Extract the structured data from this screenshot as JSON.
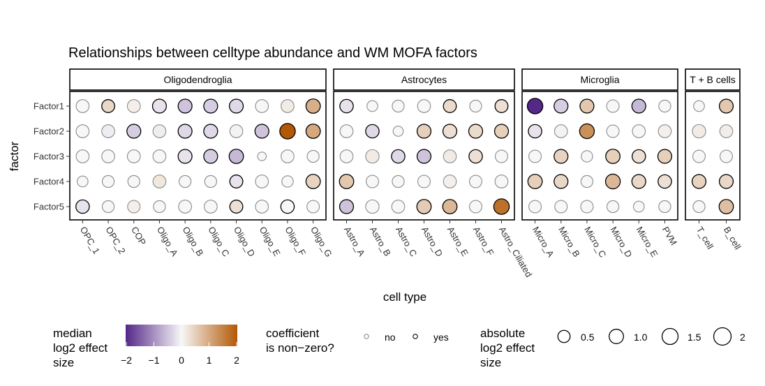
{
  "chart_data": {
    "type": "scatter",
    "title": "Relationships between celltype abundance and WM MOFA factors",
    "xlabel": "cell type",
    "ylabel": "factor",
    "factors": [
      "Factor1",
      "Factor2",
      "Factor3",
      "Factor4",
      "Factor5"
    ],
    "panels": [
      {
        "name": "Oligodendroglia",
        "celltypes": [
          "OPC_1",
          "OPC_2",
          "COP",
          "Oligo_A",
          "Oligo_B",
          "Oligo_C",
          "Oligo_D",
          "Oligo_E",
          "Oligo_F",
          "Oligo_G"
        ]
      },
      {
        "name": "Astrocytes",
        "celltypes": [
          "Astro_A",
          "Astro_B",
          "Astro_C",
          "Astro_D",
          "Astro_E",
          "Astro_F",
          "Astro_Ciliated"
        ]
      },
      {
        "name": "Microglia",
        "celltypes": [
          "Micro_A",
          "Micro_B",
          "Micro_C",
          "Micro_D",
          "Micro_E",
          "PVM"
        ]
      },
      {
        "name": "T + B cells",
        "celltypes": [
          "T_cell",
          "B_cell"
        ]
      }
    ],
    "effect": {
      "Oligodendroglia": [
        [
          0.0,
          0.4,
          0.1,
          -0.2,
          -0.5,
          -0.4,
          -0.3,
          0.0,
          0.15,
          0.9
        ],
        [
          0.0,
          -0.1,
          -0.4,
          -0.1,
          -0.3,
          -0.3,
          -0.05,
          -0.5,
          2.0,
          1.0
        ],
        [
          0.0,
          0.0,
          0.0,
          0.0,
          -0.2,
          -0.4,
          -0.6,
          0.0,
          0.0,
          0.0
        ],
        [
          0.0,
          0.0,
          0.0,
          0.2,
          0.0,
          0.0,
          -0.2,
          0.0,
          0.0,
          0.45
        ],
        [
          -0.2,
          0.0,
          0.1,
          0.0,
          0.0,
          0.0,
          0.3,
          0.0,
          0.0,
          0.0
        ]
      ],
      "Astrocytes": [
        [
          -0.2,
          0.0,
          0.0,
          0.0,
          0.35,
          0.0,
          0.3
        ],
        [
          0.0,
          -0.3,
          0.0,
          0.5,
          0.3,
          0.35,
          0.5
        ],
        [
          0.0,
          0.15,
          -0.3,
          -0.5,
          0.15,
          0.3,
          0.0
        ],
        [
          0.6,
          0.0,
          0.0,
          0.0,
          0.1,
          0.0,
          0.0
        ],
        [
          -0.5,
          0.0,
          0.0,
          0.55,
          0.8,
          0.0,
          1.7
        ]
      ],
      "Microglia": [
        [
          -2.0,
          -0.4,
          0.6,
          0.0,
          -0.6,
          0.0
        ],
        [
          -0.2,
          -0.05,
          1.3,
          0.0,
          0.0,
          0.1
        ],
        [
          0.0,
          0.45,
          0.0,
          0.5,
          0.3,
          0.5
        ],
        [
          0.5,
          0.4,
          0.0,
          0.8,
          0.4,
          0.3
        ],
        [
          0.0,
          0.0,
          0.0,
          0.0,
          0.0,
          0.0
        ]
      ],
      "T + B cells": [
        [
          0.0,
          0.6
        ],
        [
          0.15,
          0.12
        ],
        [
          0.0,
          0.0
        ],
        [
          0.45,
          0.4
        ],
        [
          0.0,
          0.7
        ]
      ]
    },
    "nonzero": {
      "Oligodendroglia": [
        [
          0,
          1,
          0,
          1,
          1,
          1,
          1,
          0,
          0,
          1
        ],
        [
          0,
          0,
          1,
          0,
          1,
          1,
          0,
          1,
          1,
          1
        ],
        [
          0,
          0,
          0,
          0,
          1,
          1,
          1,
          0,
          0,
          0
        ],
        [
          0,
          0,
          0,
          0,
          0,
          0,
          1,
          0,
          0,
          1
        ],
        [
          1,
          0,
          0,
          0,
          0,
          0,
          1,
          0,
          1,
          0
        ]
      ],
      "Astrocytes": [
        [
          1,
          0,
          0,
          0,
          1,
          0,
          1
        ],
        [
          0,
          1,
          0,
          1,
          1,
          1,
          1
        ],
        [
          0,
          0,
          1,
          1,
          0,
          1,
          0
        ],
        [
          1,
          0,
          0,
          0,
          0,
          0,
          0
        ],
        [
          1,
          0,
          0,
          1,
          1,
          0,
          1
        ]
      ],
      "Microglia": [
        [
          1,
          1,
          1,
          0,
          1,
          0
        ],
        [
          1,
          0,
          1,
          0,
          0,
          0
        ],
        [
          0,
          1,
          0,
          1,
          1,
          1
        ],
        [
          1,
          1,
          0,
          1,
          1,
          1
        ],
        [
          0,
          0,
          0,
          0,
          0,
          0
        ]
      ],
      "T + B cells": [
        [
          0,
          1
        ],
        [
          0,
          0
        ],
        [
          0,
          0
        ],
        [
          1,
          1
        ],
        [
          0,
          1
        ]
      ]
    },
    "abs_size": {
      "Oligodendroglia": [
        [
          1.0,
          1.0,
          1.0,
          1.2,
          1.2,
          1.2,
          1.2,
          1.0,
          1.0,
          1.3
        ],
        [
          1.0,
          1.0,
          1.2,
          1.0,
          1.2,
          1.2,
          1.0,
          1.2,
          1.6,
          1.3
        ],
        [
          1.0,
          1.0,
          1.0,
          1.0,
          1.2,
          1.2,
          1.3,
          0.3,
          1.0,
          0.8
        ],
        [
          0.6,
          0.8,
          0.8,
          1.0,
          0.8,
          0.8,
          1.0,
          1.0,
          0.7,
          1.3
        ],
        [
          1.1,
          0.8,
          0.9,
          0.8,
          1.0,
          1.0,
          1.0,
          1.0,
          1.1,
          0.9
        ]
      ],
      "Astrocytes": [
        [
          1.1,
          0.6,
          0.8,
          1.0,
          1.0,
          0.8,
          1.0
        ],
        [
          1.0,
          1.1,
          0.5,
          1.2,
          1.2,
          1.2,
          1.2
        ],
        [
          1.0,
          1.1,
          1.1,
          1.2,
          1.0,
          1.1,
          0.9
        ],
        [
          1.3,
          0.9,
          0.8,
          0.9,
          1.0,
          0.9,
          1.0
        ],
        [
          1.2,
          1.1,
          1.0,
          1.3,
          1.3,
          0.9,
          1.6
        ]
      ],
      "Microglia": [
        [
          1.6,
          1.2,
          1.2,
          0.9,
          1.2,
          0.8
        ],
        [
          1.1,
          1.0,
          1.4,
          0.9,
          1.0,
          1.0
        ],
        [
          0.9,
          1.2,
          0.7,
          1.3,
          1.1,
          1.2
        ],
        [
          1.3,
          1.2,
          0.8,
          1.4,
          1.2,
          1.1
        ],
        [
          0.9,
          0.9,
          0.9,
          0.8,
          0.6,
          0.8
        ]
      ],
      "T + B cells": [
        [
          0.6,
          1.2
        ],
        [
          1.1,
          1.0
        ],
        [
          0.9,
          0.9
        ],
        [
          1.2,
          1.2
        ],
        [
          0.8,
          1.3
        ]
      ]
    },
    "legend": {
      "color": {
        "title": [
          "median",
          "log2 effect",
          "size"
        ],
        "ticks": [
          "−2",
          "−1",
          "0",
          "1",
          "2"
        ],
        "range": [
          -2,
          2
        ]
      },
      "nonzero": {
        "title": [
          "coefficient",
          "is non−zero?"
        ],
        "labels": [
          "no",
          "yes"
        ]
      },
      "size": {
        "title": [
          "absolute",
          "log2 effect",
          "size"
        ],
        "values": [
          0.5,
          1.0,
          1.5,
          2
        ],
        "labels": [
          "0.5",
          "1.0",
          "1.5",
          "2"
        ]
      }
    },
    "colors": {
      "negative": "#542788",
      "neutral": "#f7f7f7",
      "positive": "#b35806",
      "outline_nonzero": "#000000",
      "outline_zero": "#8c8c8c"
    },
    "legend_position": "bottom",
    "grid": false
  }
}
